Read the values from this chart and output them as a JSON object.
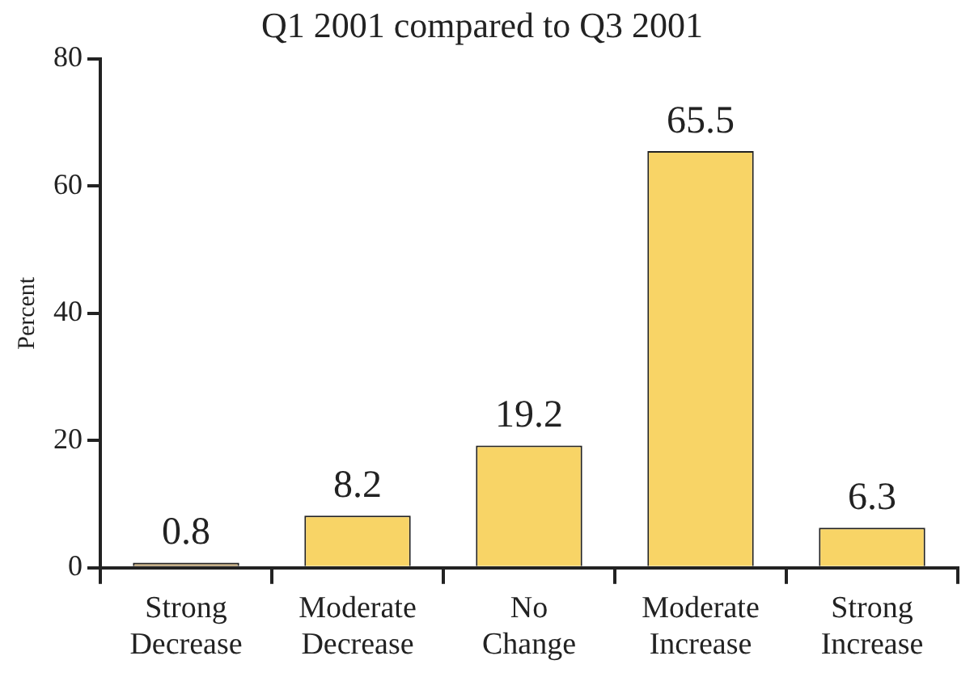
{
  "chart_data": {
    "type": "bar",
    "title": "Q1 2001 compared to Q3 2001",
    "ylabel": "Percent",
    "categories": [
      "Strong Decrease",
      "Moderate Decrease",
      "No Change",
      "Moderate Increase",
      "Strong Increase"
    ],
    "values": [
      0.8,
      8.2,
      19.2,
      65.5,
      6.3
    ],
    "colors": [
      "#b59a6a",
      "#f8d466",
      "#f8d466",
      "#f8d466",
      "#f8d466"
    ],
    "ylim": [
      0,
      80
    ],
    "yticks": [
      0,
      20,
      40,
      60,
      80
    ],
    "grid": false,
    "legend": false,
    "data_labels": true
  }
}
